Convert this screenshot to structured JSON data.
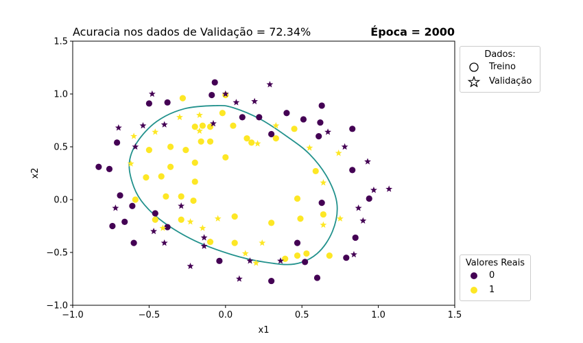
{
  "title_left": "Acuracia nos dados de Validação = 72.34%",
  "title_right": "Época = 2000",
  "colors": {
    "class0": "#440154",
    "class1": "#fde725",
    "boundary": "#21918c"
  },
  "legend_dados": {
    "title": "Dados:",
    "items": [
      {
        "label": "Treino",
        "marker": "circle-icon"
      },
      {
        "label": "Validação",
        "marker": "star-icon"
      }
    ]
  },
  "legend_valores": {
    "title": "Valores Reais",
    "items": [
      {
        "label": "0",
        "color": "#440154"
      },
      {
        "label": "1",
        "color": "#fde725"
      }
    ]
  },
  "chart_data": {
    "type": "scatter",
    "xlabel": "x1",
    "ylabel": "x2",
    "xlim": [
      -1.0,
      1.5
    ],
    "ylim": [
      -1.0,
      1.5
    ],
    "xticks": [
      "−1.0",
      "−0.5",
      "0.0",
      "0.5",
      "1.0",
      "1.5"
    ],
    "yticks": [
      "−1.0",
      "−0.5",
      "0.0",
      "0.5",
      "1.0",
      "1.5"
    ],
    "grid": false,
    "series": [
      {
        "name": "Treino",
        "marker": "circle",
        "points": [
          [
            -0.07,
            1.11
          ],
          [
            -0.09,
            0.99
          ],
          [
            0.11,
            0.78
          ],
          [
            0.22,
            0.78
          ],
          [
            0.3,
            0.62
          ],
          [
            0.4,
            0.82
          ],
          [
            0.51,
            0.76
          ],
          [
            0.63,
            0.89
          ],
          [
            0.62,
            0.73
          ],
          [
            0.61,
            0.6
          ],
          [
            -0.5,
            0.91
          ],
          [
            -0.38,
            0.92
          ],
          [
            -0.71,
            0.54
          ],
          [
            -0.83,
            0.31
          ],
          [
            -0.76,
            0.29
          ],
          [
            -0.69,
            0.04
          ],
          [
            -0.61,
            -0.06
          ],
          [
            -0.66,
            -0.21
          ],
          [
            -0.74,
            -0.25
          ],
          [
            -0.6,
            -0.41
          ],
          [
            -0.46,
            -0.13
          ],
          [
            -0.38,
            -0.26
          ],
          [
            -0.04,
            -0.58
          ],
          [
            0.3,
            -0.77
          ],
          [
            0.52,
            -0.59
          ],
          [
            0.47,
            -0.41
          ],
          [
            0.6,
            -0.74
          ],
          [
            0.79,
            -0.55
          ],
          [
            0.85,
            -0.36
          ],
          [
            0.63,
            -0.03
          ],
          [
            0.94,
            0.01
          ],
          [
            0.83,
            0.28
          ],
          [
            0.83,
            0.67
          ],
          [
            0.0,
            0.99
          ],
          [
            0.45,
            0.67
          ],
          [
            0.33,
            0.58
          ],
          [
            0.14,
            0.58
          ],
          [
            -0.02,
            0.82
          ],
          [
            -0.15,
            0.7
          ],
          [
            -0.2,
            0.69
          ],
          [
            -0.28,
            0.96
          ],
          [
            -0.16,
            0.55
          ],
          [
            -0.1,
            0.55
          ],
          [
            -0.26,
            0.47
          ],
          [
            -0.36,
            0.5
          ],
          [
            -0.5,
            0.47
          ],
          [
            -0.2,
            0.35
          ],
          [
            -0.36,
            0.31
          ],
          [
            -0.42,
            0.22
          ],
          [
            -0.52,
            0.21
          ],
          [
            0.0,
            0.4
          ],
          [
            -0.2,
            0.17
          ],
          [
            -0.39,
            0.03
          ],
          [
            -0.29,
            0.03
          ],
          [
            -0.59,
            0.0
          ],
          [
            -0.21,
            -0.01
          ],
          [
            -0.46,
            -0.19
          ],
          [
            -0.29,
            -0.19
          ],
          [
            0.06,
            -0.16
          ],
          [
            0.3,
            -0.22
          ],
          [
            0.49,
            -0.18
          ],
          [
            0.47,
            0.01
          ],
          [
            0.59,
            0.27
          ],
          [
            0.64,
            -0.14
          ],
          [
            0.68,
            -0.53
          ],
          [
            0.47,
            -0.53
          ],
          [
            0.39,
            -0.56
          ],
          [
            0.53,
            -0.51
          ],
          [
            0.06,
            -0.41
          ],
          [
            -0.1,
            -0.4
          ],
          [
            0.17,
            0.54
          ],
          [
            -0.1,
            0.69
          ],
          [
            0.05,
            0.7
          ]
        ],
        "classes": [
          0,
          0,
          0,
          0,
          0,
          0,
          0,
          0,
          0,
          0,
          0,
          0,
          0,
          0,
          0,
          0,
          0,
          0,
          0,
          0,
          0,
          0,
          0,
          0,
          0,
          0,
          0,
          0,
          0,
          0,
          0,
          0,
          0,
          1,
          1,
          1,
          1,
          1,
          1,
          1,
          1,
          1,
          1,
          1,
          1,
          1,
          1,
          1,
          1,
          1,
          1,
          1,
          1,
          1,
          1,
          1,
          1,
          1,
          1,
          1,
          1,
          1,
          1,
          1,
          1,
          1,
          1,
          1,
          1,
          1,
          1,
          1,
          1
        ]
      },
      {
        "name": "Validação",
        "marker": "star",
        "points": [
          [
            -0.48,
            1.0
          ],
          [
            0.0,
            1.0
          ],
          [
            0.29,
            1.09
          ],
          [
            0.07,
            0.92
          ],
          [
            0.19,
            0.93
          ],
          [
            -0.7,
            0.68
          ],
          [
            -0.54,
            0.7
          ],
          [
            -0.4,
            0.71
          ],
          [
            -0.59,
            0.5
          ],
          [
            -0.08,
            0.72
          ],
          [
            0.67,
            0.64
          ],
          [
            0.78,
            0.5
          ],
          [
            0.93,
            0.36
          ],
          [
            0.97,
            0.09
          ],
          [
            1.07,
            0.1
          ],
          [
            0.87,
            -0.08
          ],
          [
            0.9,
            -0.2
          ],
          [
            0.84,
            -0.52
          ],
          [
            0.36,
            -0.58
          ],
          [
            0.16,
            -0.58
          ],
          [
            0.09,
            -0.75
          ],
          [
            -0.23,
            -0.63
          ],
          [
            -0.14,
            -0.44
          ],
          [
            -0.14,
            -0.36
          ],
          [
            -0.4,
            -0.41
          ],
          [
            -0.47,
            -0.3
          ],
          [
            -0.29,
            -0.06
          ],
          [
            -0.72,
            -0.08
          ],
          [
            -0.3,
            0.78
          ],
          [
            -0.17,
            0.8
          ],
          [
            -0.6,
            0.6
          ],
          [
            -0.46,
            0.64
          ],
          [
            -0.62,
            0.34
          ],
          [
            -0.17,
            0.65
          ],
          [
            0.33,
            0.7
          ],
          [
            0.21,
            0.53
          ],
          [
            0.55,
            0.49
          ],
          [
            0.74,
            0.44
          ],
          [
            0.64,
            0.16
          ],
          [
            0.75,
            -0.18
          ],
          [
            0.64,
            -0.24
          ],
          [
            0.2,
            -0.6
          ],
          [
            0.13,
            -0.51
          ],
          [
            0.24,
            -0.41
          ],
          [
            -0.05,
            -0.18
          ],
          [
            -0.15,
            -0.27
          ],
          [
            -0.23,
            -0.21
          ],
          [
            -0.41,
            -0.27
          ],
          [
            -0.1,
            -0.4
          ]
        ],
        "classes": [
          0,
          0,
          0,
          0,
          0,
          0,
          0,
          0,
          0,
          0,
          0,
          0,
          0,
          0,
          0,
          0,
          0,
          0,
          0,
          0,
          0,
          0,
          0,
          0,
          0,
          0,
          0,
          0,
          1,
          1,
          1,
          1,
          1,
          1,
          1,
          1,
          1,
          1,
          1,
          1,
          1,
          1,
          1,
          1,
          1,
          1,
          1,
          1,
          1
        ]
      }
    ],
    "decision_boundary": [
      [
        -0.06,
        0.89
      ],
      [
        -0.27,
        0.86
      ],
      [
        -0.45,
        0.74
      ],
      [
        -0.58,
        0.54
      ],
      [
        -0.63,
        0.34
      ],
      [
        -0.6,
        0.12
      ],
      [
        -0.53,
        -0.05
      ],
      [
        -0.4,
        -0.22
      ],
      [
        -0.2,
        -0.39
      ],
      [
        0.04,
        -0.52
      ],
      [
        0.25,
        -0.59
      ],
      [
        0.45,
        -0.61
      ],
      [
        0.6,
        -0.51
      ],
      [
        0.7,
        -0.3
      ],
      [
        0.73,
        -0.05
      ],
      [
        0.67,
        0.2
      ],
      [
        0.55,
        0.43
      ],
      [
        0.4,
        0.6
      ],
      [
        0.23,
        0.76
      ],
      [
        0.05,
        0.87
      ]
    ]
  }
}
